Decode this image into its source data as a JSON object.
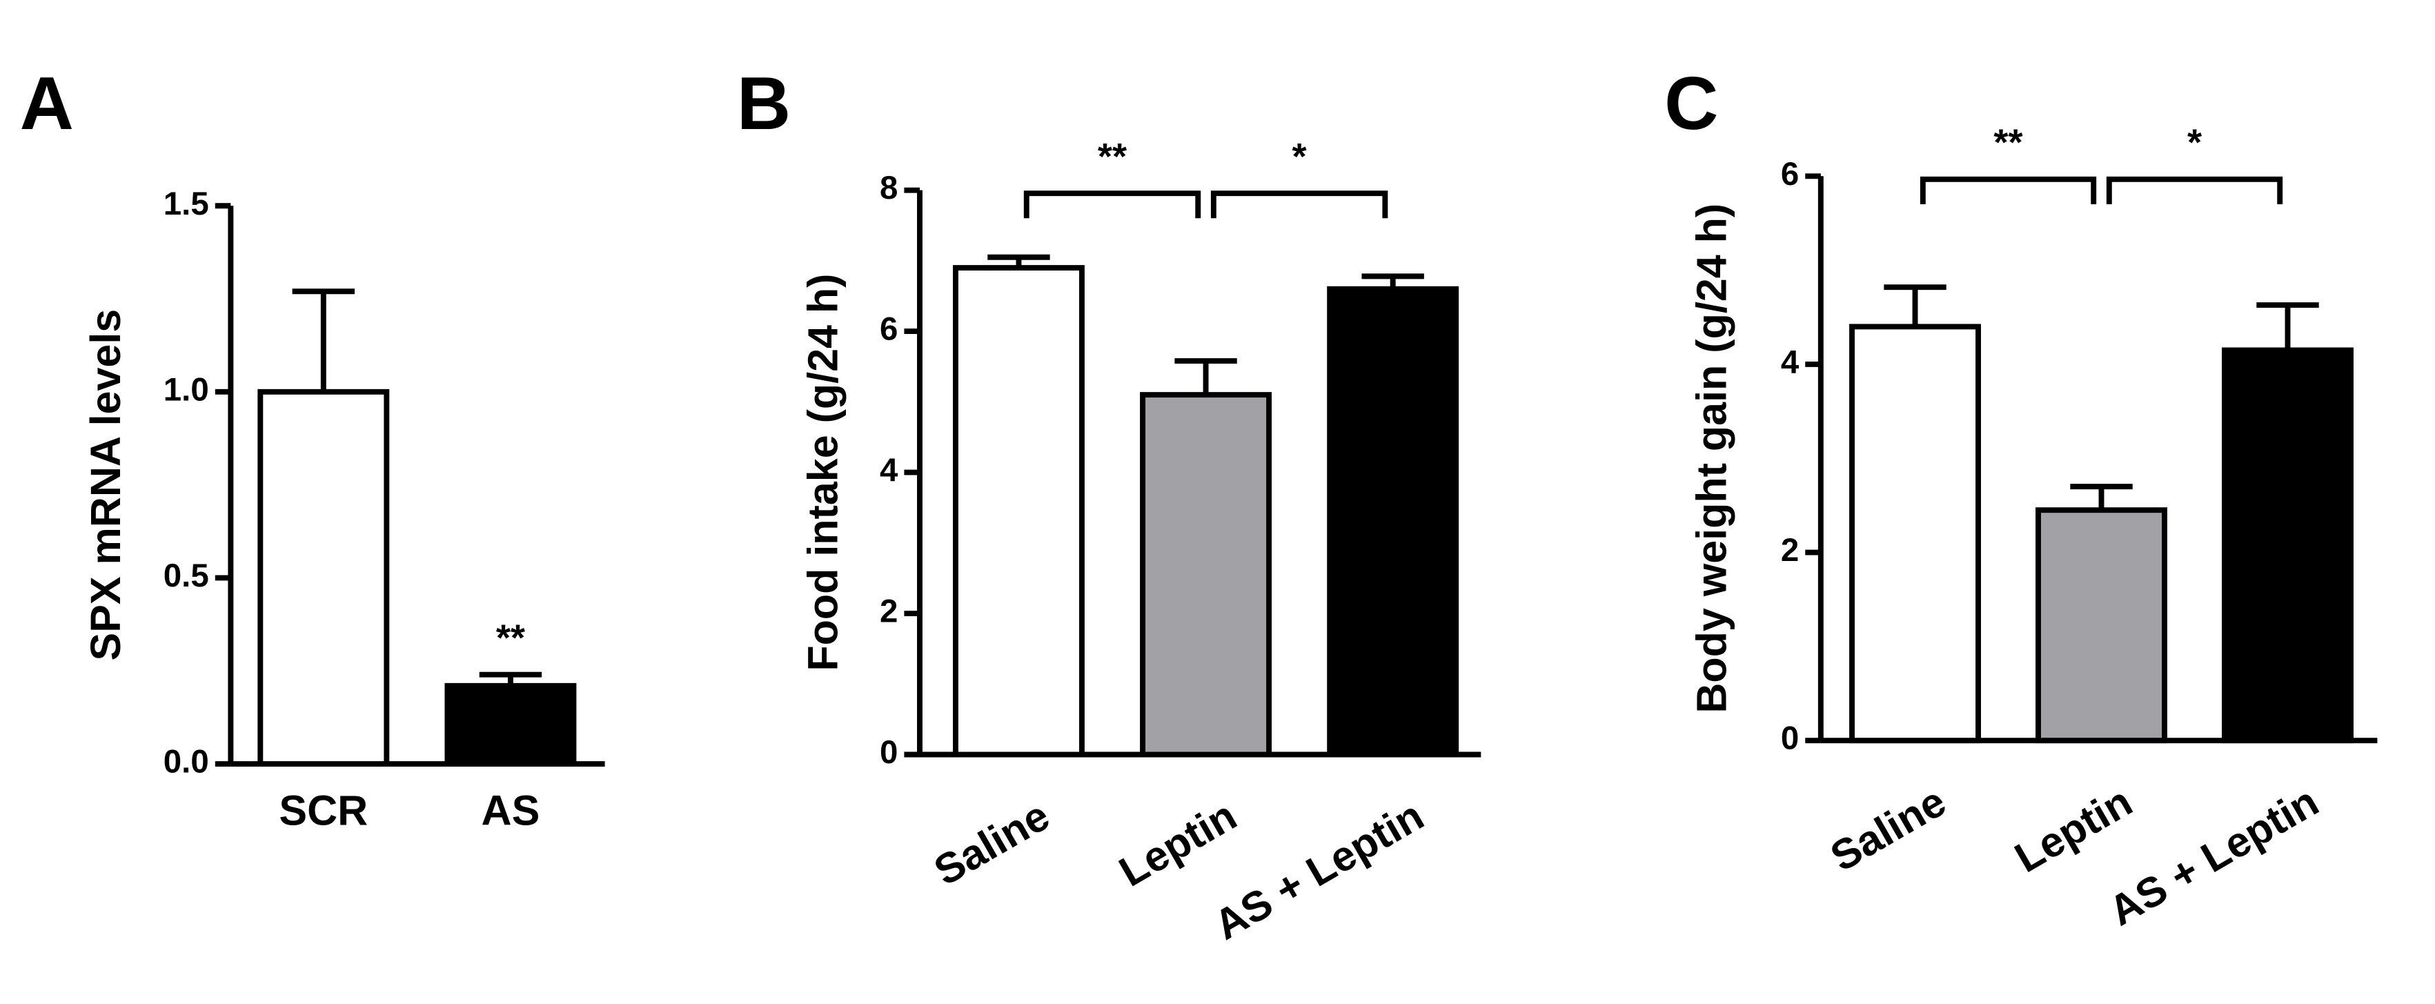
{
  "chart_data": [
    {
      "type": "bar",
      "panel": "A",
      "ylabel": "SPX mRNA levels",
      "categories": [
        "SCR",
        "AS"
      ],
      "values": [
        1.0,
        0.21
      ],
      "errors": [
        0.27,
        0.03
      ],
      "colors": [
        "#ffffff",
        "#000000"
      ],
      "significance_labels": [
        null,
        "**"
      ],
      "ylim": [
        0,
        1.5
      ],
      "yticks": [
        {
          "value": 0,
          "label": "0.0"
        },
        {
          "value": 0.5,
          "label": "0.5"
        },
        {
          "value": 1.0,
          "label": "1.0"
        },
        {
          "value": 1.5,
          "label": "1.5"
        }
      ]
    },
    {
      "type": "bar",
      "panel": "B",
      "ylabel": "Food intake (g/24 h)",
      "categories": [
        "Saline",
        "Leptin",
        "AS + Leptin"
      ],
      "values": [
        6.9,
        5.1,
        6.6
      ],
      "errors": [
        0.15,
        0.48,
        0.18
      ],
      "colors": [
        "#ffffff",
        "#a2a2a6",
        "#000000"
      ],
      "brackets": [
        "**",
        "*"
      ],
      "ylim": [
        0,
        8
      ],
      "yticks": [
        0,
        2,
        4,
        6,
        8
      ]
    },
    {
      "type": "bar",
      "panel": "C",
      "ylabel": "Body weight gain (g/24 h)",
      "categories": [
        "Saline",
        "Leptin",
        "AS + Leptin"
      ],
      "values": [
        4.4,
        2.45,
        4.15
      ],
      "errors": [
        0.42,
        0.25,
        0.48
      ],
      "colors": [
        "#ffffff",
        "#a2a2a6",
        "#000000"
      ],
      "brackets": [
        "**",
        "*"
      ],
      "ylim": [
        0,
        6
      ],
      "yticks": [
        0,
        2,
        4,
        6
      ]
    }
  ]
}
